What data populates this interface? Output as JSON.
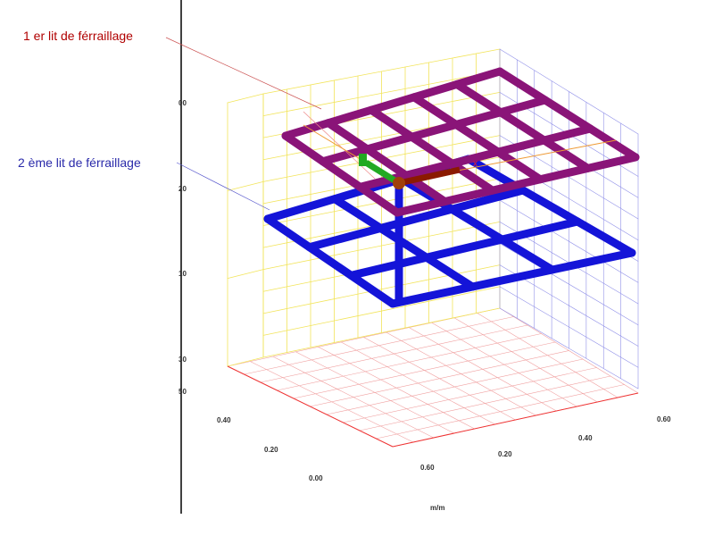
{
  "annotations": [
    {
      "label": "1 er lit de férraillage"
    },
    {
      "label": "2 ème lit de férraillage"
    }
  ],
  "axis_labels": {
    "vertical": [
      "00",
      "20",
      "10",
      "30",
      "50"
    ],
    "horizontal_left": [
      "0.40",
      "0.20",
      "0.00"
    ],
    "horizontal_right": [
      "0.60",
      "0.20",
      "0.40",
      "0.60"
    ],
    "unit": "m/m"
  }
}
